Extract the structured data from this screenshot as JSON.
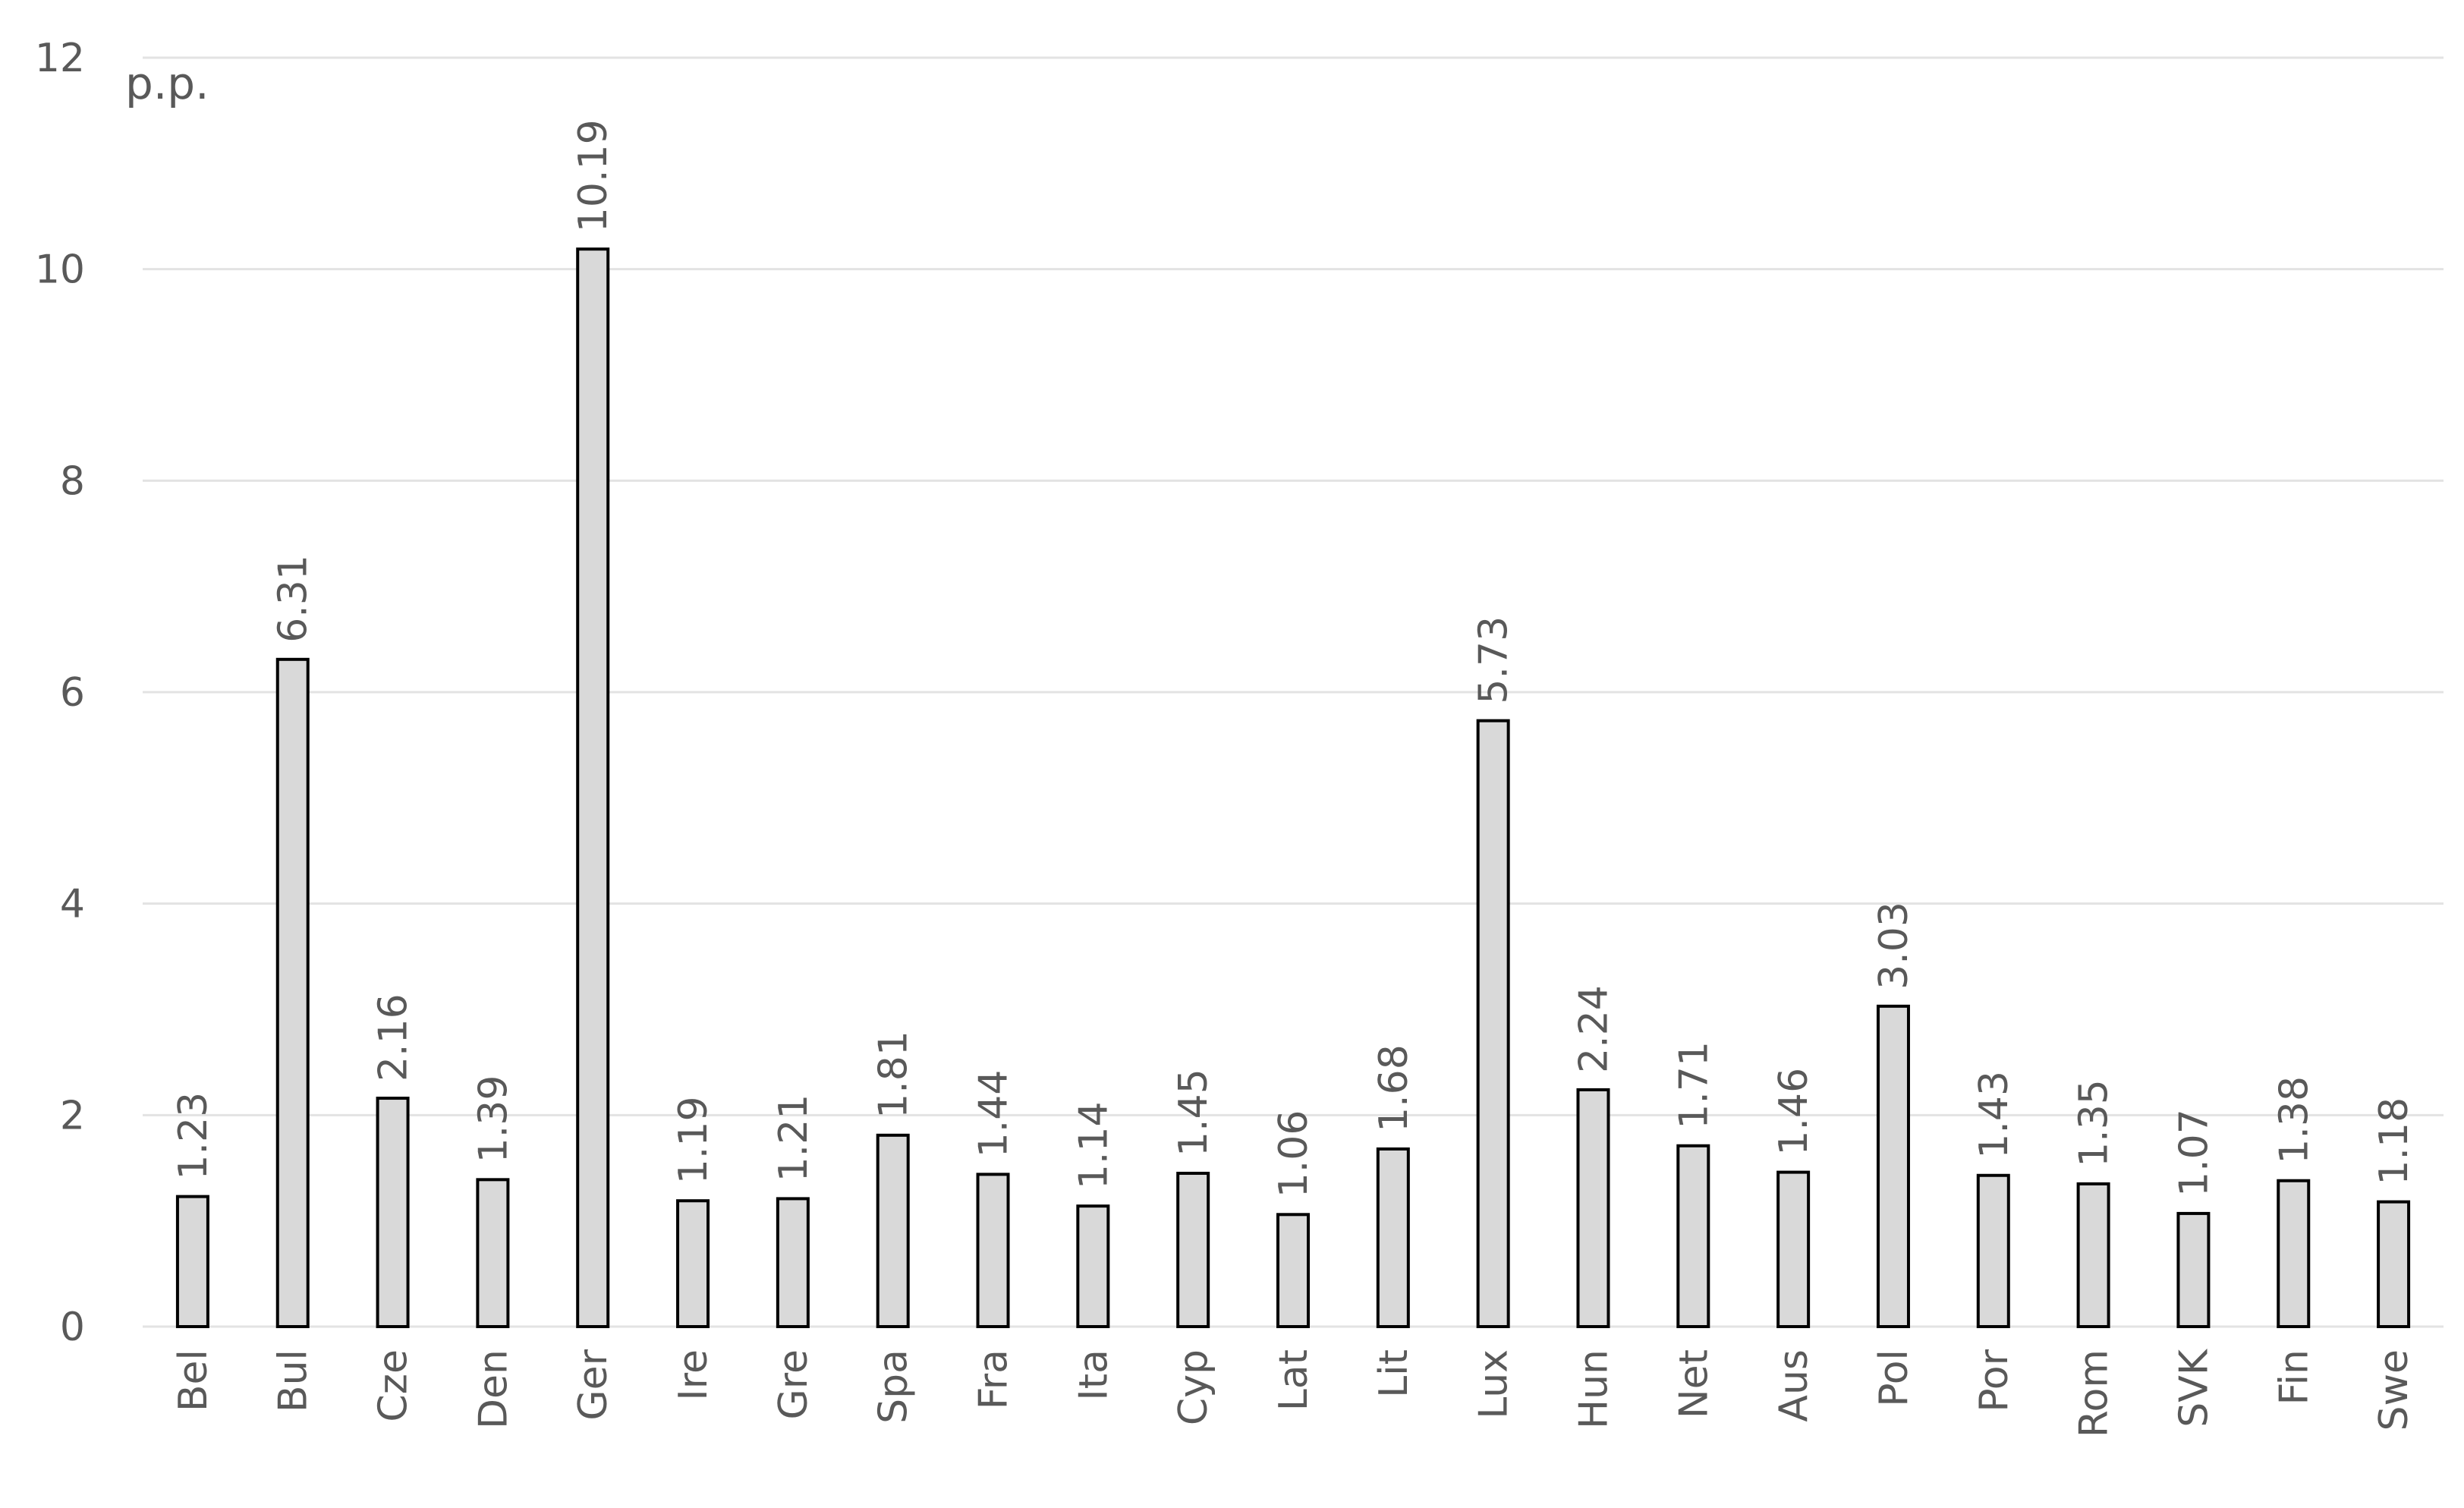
{
  "chart_data": {
    "type": "bar",
    "title": "",
    "xlabel": "",
    "ylabel": "",
    "unit_label": "p.p.",
    "categories": [
      "Bel",
      "Bul",
      "Cze",
      "Den",
      "Ger",
      "Ire",
      "Gre",
      "Spa",
      "Fra",
      "Ita",
      "Cyp",
      "Lat",
      "Lit",
      "Lux",
      "Hun",
      "Net",
      "Aus",
      "Pol",
      "Por",
      "Rom",
      "SVK",
      "Fin",
      "Swe"
    ],
    "values": [
      1.23,
      6.31,
      2.16,
      1.39,
      10.19,
      1.19,
      1.21,
      1.81,
      1.44,
      1.14,
      1.45,
      1.06,
      1.68,
      5.73,
      2.24,
      1.71,
      1.46,
      3.03,
      1.43,
      1.35,
      1.07,
      1.38,
      1.18
    ],
    "data_labels": [
      "1.23",
      "6.31",
      "2.16",
      "1.39",
      "10.19",
      "1.19",
      "1.21",
      "1.81",
      "1.44",
      "1.14",
      "1.45",
      "1.06",
      "1.68",
      "5.73",
      "2.24",
      "1.71",
      "1.46",
      "3.03",
      "1.43",
      "1.35",
      "1.07",
      "1.38",
      "1.18"
    ],
    "ylim": [
      0,
      12
    ],
    "yticks": [
      0,
      2,
      4,
      6,
      8,
      10,
      12
    ],
    "grid": true,
    "legend": "none",
    "colors": {
      "bar_fill": "#d9d9d9",
      "bar_stroke": "#000000",
      "grid": "#e3e3e3",
      "text": "#595959"
    }
  }
}
